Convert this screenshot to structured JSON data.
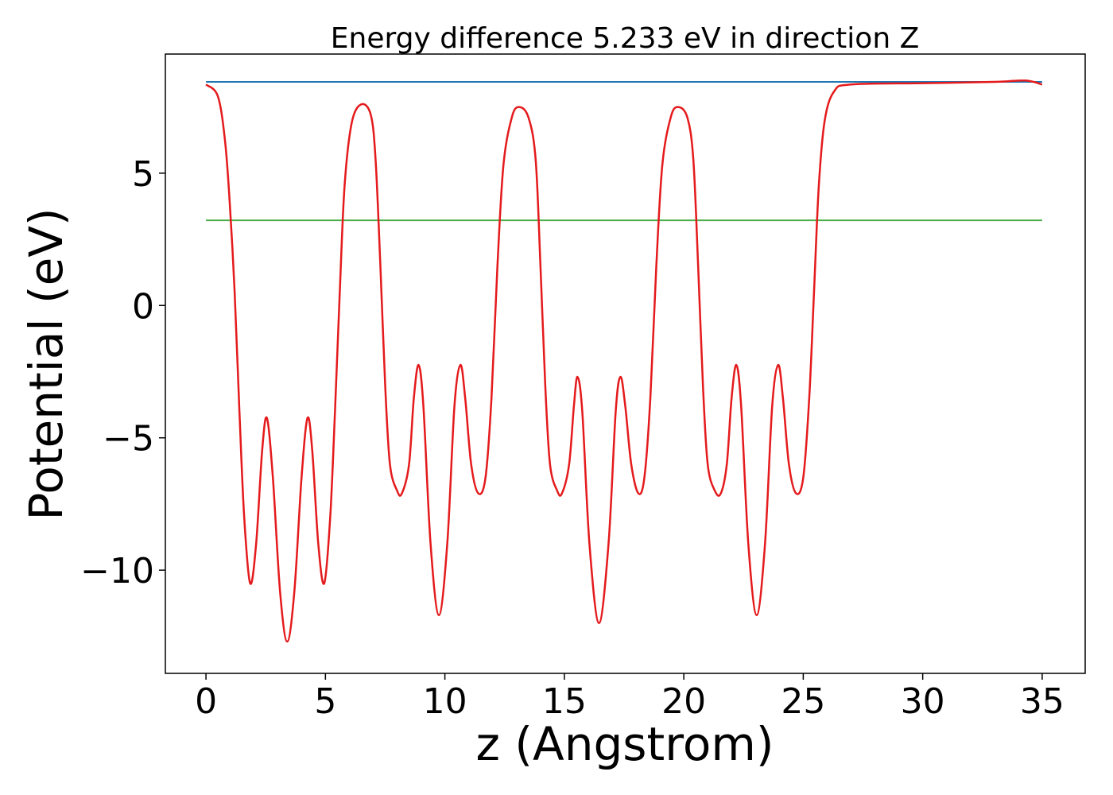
{
  "chart_data": {
    "type": "line",
    "title": "Energy difference 5.233 eV in direction Z",
    "xlabel": "z (Angstrom)",
    "ylabel": "Potential (eV)",
    "xlim": [
      -1.7,
      36.8
    ],
    "ylim": [
      -13.9,
      9.5
    ],
    "xticks": [
      0,
      5,
      10,
      15,
      20,
      25,
      30,
      35
    ],
    "yticks": [
      -10,
      -5,
      0,
      5
    ],
    "grid": false,
    "legend": "none",
    "colors": {
      "potential": "#e41a1c",
      "vacuum": "#1f77b4",
      "fermi": "#4daf4a"
    },
    "hlines": [
      {
        "y": 8.45,
        "x": [
          0,
          35
        ],
        "color": "#1f77b4"
      },
      {
        "y": 3.22,
        "x": [
          0,
          35
        ],
        "color": "#4daf4a"
      }
    ],
    "series": [
      {
        "color": "#e41a1c",
        "points": [
          [
            0,
            8.35
          ],
          [
            0.5,
            7.9
          ],
          [
            0.8,
            6.2
          ],
          [
            1.0,
            3.8
          ],
          [
            1.2,
            0.5
          ],
          [
            1.4,
            -4.0
          ],
          [
            1.6,
            -8.0
          ],
          [
            1.85,
            -10.5
          ],
          [
            2.1,
            -9.0
          ],
          [
            2.35,
            -5.5
          ],
          [
            2.55,
            -4.25
          ],
          [
            2.8,
            -6.5
          ],
          [
            3.1,
            -10.8
          ],
          [
            3.4,
            -12.7
          ],
          [
            3.7,
            -10.8
          ],
          [
            4.0,
            -6.5
          ],
          [
            4.25,
            -4.25
          ],
          [
            4.45,
            -5.5
          ],
          [
            4.7,
            -9.0
          ],
          [
            4.95,
            -10.5
          ],
          [
            5.2,
            -8.0
          ],
          [
            5.4,
            -4.0
          ],
          [
            5.6,
            0.5
          ],
          [
            5.8,
            4.5
          ],
          [
            6.1,
            6.9
          ],
          [
            6.5,
            7.6
          ],
          [
            6.9,
            7.2
          ],
          [
            7.1,
            5.5
          ],
          [
            7.3,
            1.5
          ],
          [
            7.5,
            -3.0
          ],
          [
            7.7,
            -6.0
          ],
          [
            8.0,
            -7.0
          ],
          [
            8.2,
            -7.1
          ],
          [
            8.5,
            -6.0
          ],
          [
            8.7,
            -3.5
          ],
          [
            8.9,
            -2.25
          ],
          [
            9.1,
            -3.8
          ],
          [
            9.4,
            -9.0
          ],
          [
            9.75,
            -11.7
          ],
          [
            10.1,
            -9.0
          ],
          [
            10.4,
            -3.8
          ],
          [
            10.65,
            -2.25
          ],
          [
            10.85,
            -3.5
          ],
          [
            11.1,
            -6.0
          ],
          [
            11.4,
            -7.1
          ],
          [
            11.7,
            -6.5
          ],
          [
            11.95,
            -3.5
          ],
          [
            12.2,
            1.5
          ],
          [
            12.45,
            5.3
          ],
          [
            12.8,
            7.1
          ],
          [
            13.1,
            7.5
          ],
          [
            13.5,
            7.1
          ],
          [
            13.8,
            5.5
          ],
          [
            14.0,
            1.5
          ],
          [
            14.2,
            -3.0
          ],
          [
            14.4,
            -6.0
          ],
          [
            14.7,
            -7.0
          ],
          [
            14.9,
            -7.1
          ],
          [
            15.2,
            -6.0
          ],
          [
            15.4,
            -3.8
          ],
          [
            15.55,
            -2.7
          ],
          [
            15.75,
            -4.0
          ],
          [
            16.05,
            -9.0
          ],
          [
            16.45,
            -12.0
          ],
          [
            16.85,
            -9.0
          ],
          [
            17.15,
            -4.0
          ],
          [
            17.35,
            -2.7
          ],
          [
            17.55,
            -3.8
          ],
          [
            17.8,
            -6.0
          ],
          [
            18.1,
            -7.1
          ],
          [
            18.35,
            -6.5
          ],
          [
            18.6,
            -3.5
          ],
          [
            18.85,
            1.5
          ],
          [
            19.1,
            5.3
          ],
          [
            19.45,
            7.1
          ],
          [
            19.75,
            7.5
          ],
          [
            20.15,
            7.1
          ],
          [
            20.4,
            5.5
          ],
          [
            20.6,
            1.5
          ],
          [
            20.8,
            -3.0
          ],
          [
            21.0,
            -6.0
          ],
          [
            21.3,
            -7.0
          ],
          [
            21.55,
            -7.1
          ],
          [
            21.8,
            -6.0
          ],
          [
            22.0,
            -3.5
          ],
          [
            22.2,
            -2.25
          ],
          [
            22.4,
            -3.8
          ],
          [
            22.7,
            -9.0
          ],
          [
            23.05,
            -11.7
          ],
          [
            23.4,
            -9.0
          ],
          [
            23.7,
            -3.8
          ],
          [
            23.95,
            -2.25
          ],
          [
            24.15,
            -3.5
          ],
          [
            24.4,
            -6.0
          ],
          [
            24.7,
            -7.1
          ],
          [
            25.0,
            -6.5
          ],
          [
            25.25,
            -3.5
          ],
          [
            25.45,
            0.5
          ],
          [
            25.65,
            4.5
          ],
          [
            25.9,
            7.0
          ],
          [
            26.3,
            8.1
          ],
          [
            27.0,
            8.35
          ],
          [
            30.0,
            8.4
          ],
          [
            33.0,
            8.45
          ],
          [
            34.3,
            8.5
          ],
          [
            35.0,
            8.35
          ]
        ]
      }
    ]
  }
}
